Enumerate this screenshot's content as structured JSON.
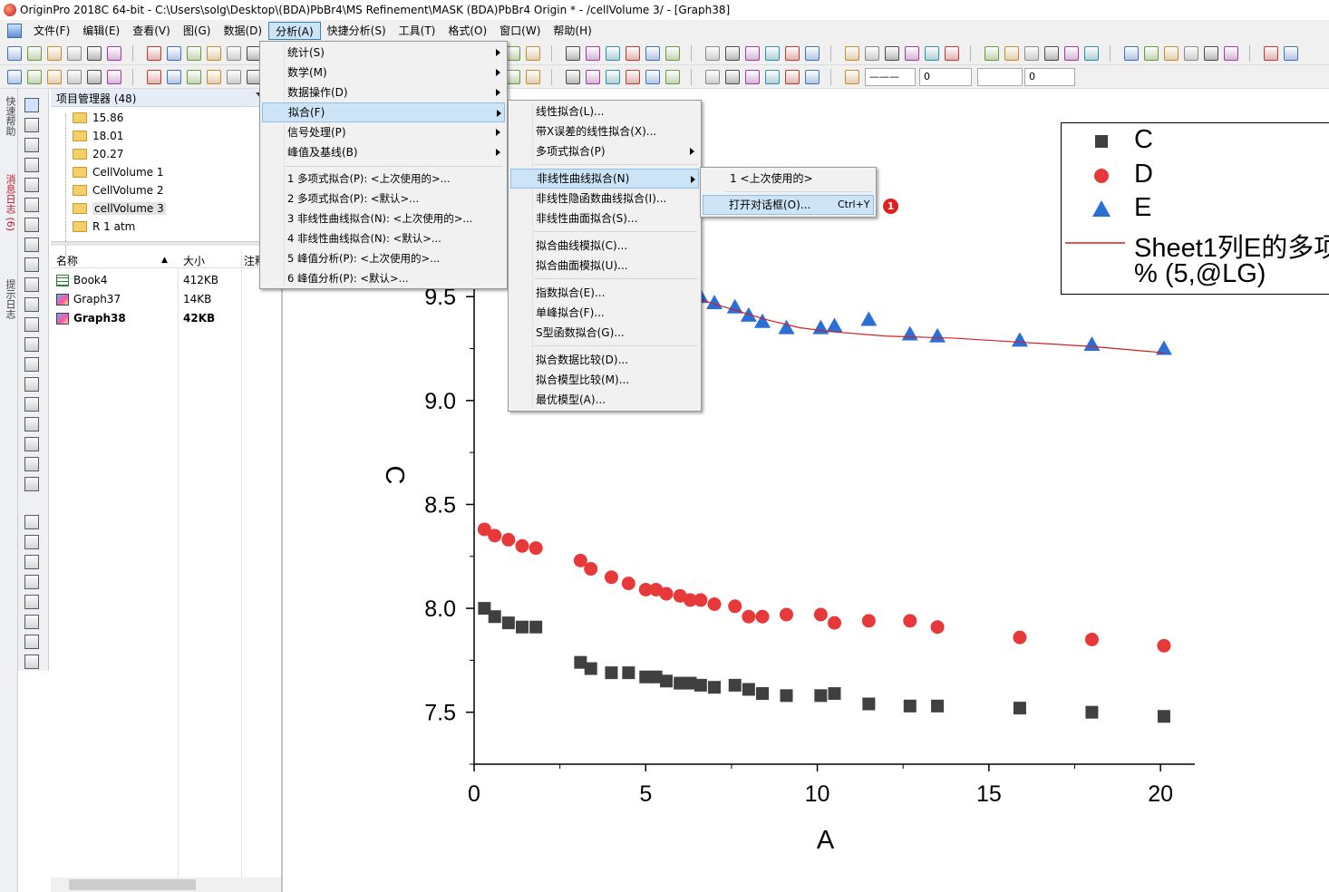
{
  "window": {
    "title": "OriginPro 2018C 64-bit - C:\\Users\\solg\\Desktop\\(BDA)PbBr4\\MS Refinement\\MASK (BDA)PbBr4 Origin * - /cellVolume 3/ - [Graph38]"
  },
  "menubar": {
    "items": [
      "文件(F)",
      "编辑(E)",
      "查看(V)",
      "图(G)",
      "数据(D)",
      "分析(A)",
      "快捷分析(S)",
      "工具(T)",
      "格式(O)",
      "窗口(W)",
      "帮助(H)"
    ],
    "active_index": 5
  },
  "toolbar2": {
    "line_width_value": "0",
    "font_size_value": "0"
  },
  "left_tabs": {
    "quick_help": "快速帮助",
    "message_log": "消息日志 (6)",
    "hint_log": "提示日志"
  },
  "project_manager": {
    "title": "项目管理器 (48)",
    "folders": [
      "15.86",
      "18.01",
      "20.27",
      "CellVolume 1",
      "CellVolume 2",
      "cellVolume 3",
      "R 1 atm"
    ],
    "selected_folder_index": 5,
    "columns": {
      "name": "名称",
      "size": "大小",
      "note": "注释"
    },
    "files": [
      {
        "name": "Book4",
        "size": "412KB",
        "kind": "workbook"
      },
      {
        "name": "Graph37",
        "size": "14KB",
        "kind": "graph"
      },
      {
        "name": "Graph38",
        "size": "42KB",
        "kind": "graph",
        "active": true
      }
    ]
  },
  "analysis_menu": {
    "items": [
      {
        "label": "统计(S)",
        "submenu": true
      },
      {
        "label": "数学(M)",
        "submenu": true
      },
      {
        "label": "数据操作(D)",
        "submenu": true
      },
      {
        "label": "拟合(F)",
        "submenu": true,
        "highlighted": true
      },
      {
        "label": "信号处理(P)",
        "submenu": true
      },
      {
        "label": "峰值及基线(B)",
        "submenu": true
      }
    ],
    "recent": [
      "1 多项式拟合(P): <上次使用的>...",
      "2 多项式拟合(P): <默认>...",
      "3 非线性曲线拟合(N): <上次使用的>...",
      "4 非线性曲线拟合(N): <默认>...",
      "5 峰值分析(P): <上次使用的>...",
      "6 峰值分析(P): <默认>..."
    ]
  },
  "fit_menu": {
    "groups": [
      [
        "线性拟合(L)...",
        "带X误差的线性拟合(X)...",
        "多项式拟合(P)"
      ],
      [
        "非线性曲线拟合(N)",
        "非线性隐函数曲线拟合(I)...",
        "非线性曲面拟合(S)..."
      ],
      [
        "拟合曲线模拟(C)...",
        "拟合曲面模拟(U)..."
      ],
      [
        "指数拟合(E)...",
        "单峰拟合(F)...",
        "S型函数拟合(G)..."
      ],
      [
        "拟合数据比较(D)...",
        "拟合模型比较(M)...",
        "最优模型(A)..."
      ]
    ]
  },
  "nonlinear_menu": {
    "items": [
      "1 <上次使用的>",
      "打开对话框(O)..."
    ],
    "shortcut": "Ctrl+Y",
    "badge": "1"
  },
  "chart_data": {
    "type": "scatter",
    "xlabel": "A",
    "ylabel": "C",
    "xlim": [
      0,
      21
    ],
    "ylim": [
      7.25,
      10.5
    ],
    "x_ticks": [
      "0",
      "5",
      "10",
      "15",
      "20"
    ],
    "y_ticks": [
      "7.5",
      "8.0",
      "8.5",
      "9.0",
      "9.5",
      "10.0"
    ],
    "legend_position": "top-right",
    "series": [
      {
        "name": "C",
        "marker": "square",
        "color": "#404040",
        "x": [
          0.3,
          0.6,
          1.0,
          1.4,
          1.8,
          3.1,
          3.4,
          4.0,
          4.5,
          5.0,
          5.3,
          5.6,
          6.0,
          6.3,
          6.6,
          7.0,
          7.6,
          8.0,
          8.4,
          9.1,
          10.1,
          10.5,
          11.5,
          12.7,
          13.5,
          15.9,
          18.0,
          20.1
        ],
        "y": [
          8.0,
          7.96,
          7.93,
          7.91,
          7.91,
          7.74,
          7.71,
          7.69,
          7.69,
          7.67,
          7.67,
          7.65,
          7.64,
          7.64,
          7.63,
          7.62,
          7.63,
          7.61,
          7.59,
          7.58,
          7.58,
          7.59,
          7.54,
          7.53,
          7.53,
          7.52,
          7.5,
          7.48
        ]
      },
      {
        "name": "D",
        "marker": "circle",
        "color": "#e8393a",
        "x": [
          0.3,
          0.6,
          1.0,
          1.4,
          1.8,
          3.1,
          3.4,
          4.0,
          4.5,
          5.0,
          5.3,
          5.6,
          6.0,
          6.3,
          6.6,
          7.0,
          7.6,
          8.0,
          8.4,
          9.1,
          10.1,
          10.5,
          11.5,
          12.7,
          13.5,
          15.9,
          18.0,
          20.1
        ],
        "y": [
          8.38,
          8.35,
          8.33,
          8.3,
          8.29,
          8.23,
          8.19,
          8.15,
          8.12,
          8.09,
          8.09,
          8.07,
          8.06,
          8.04,
          8.04,
          8.02,
          8.01,
          7.96,
          7.96,
          7.97,
          7.97,
          7.93,
          7.94,
          7.94,
          7.91,
          7.86,
          7.85,
          7.82
        ]
      },
      {
        "name": "E",
        "marker": "triangle",
        "color": "#2b6fd6",
        "x": [
          6.6,
          7.0,
          7.6,
          8.0,
          8.4,
          9.1,
          10.1,
          10.5,
          11.5,
          12.7,
          13.5,
          15.9,
          18.0,
          20.1
        ],
        "y": [
          9.5,
          9.47,
          9.45,
          9.41,
          9.38,
          9.35,
          9.35,
          9.36,
          9.39,
          9.32,
          9.31,
          9.29,
          9.27,
          9.25
        ]
      },
      {
        "name": "Sheet1列E的多项",
        "type": "line",
        "color": "#d42020",
        "x": [
          6.5,
          7.5,
          8.5,
          9.5,
          10.5,
          12,
          14,
          16,
          18,
          20.1
        ],
        "y": [
          9.49,
          9.44,
          9.39,
          9.35,
          9.33,
          9.31,
          9.3,
          9.28,
          9.26,
          9.23
        ]
      }
    ],
    "legend_extra_line": "% (5,@LG)"
  },
  "colors": {
    "menu_highlight": "#cde4f7",
    "badge": "#e02020"
  }
}
